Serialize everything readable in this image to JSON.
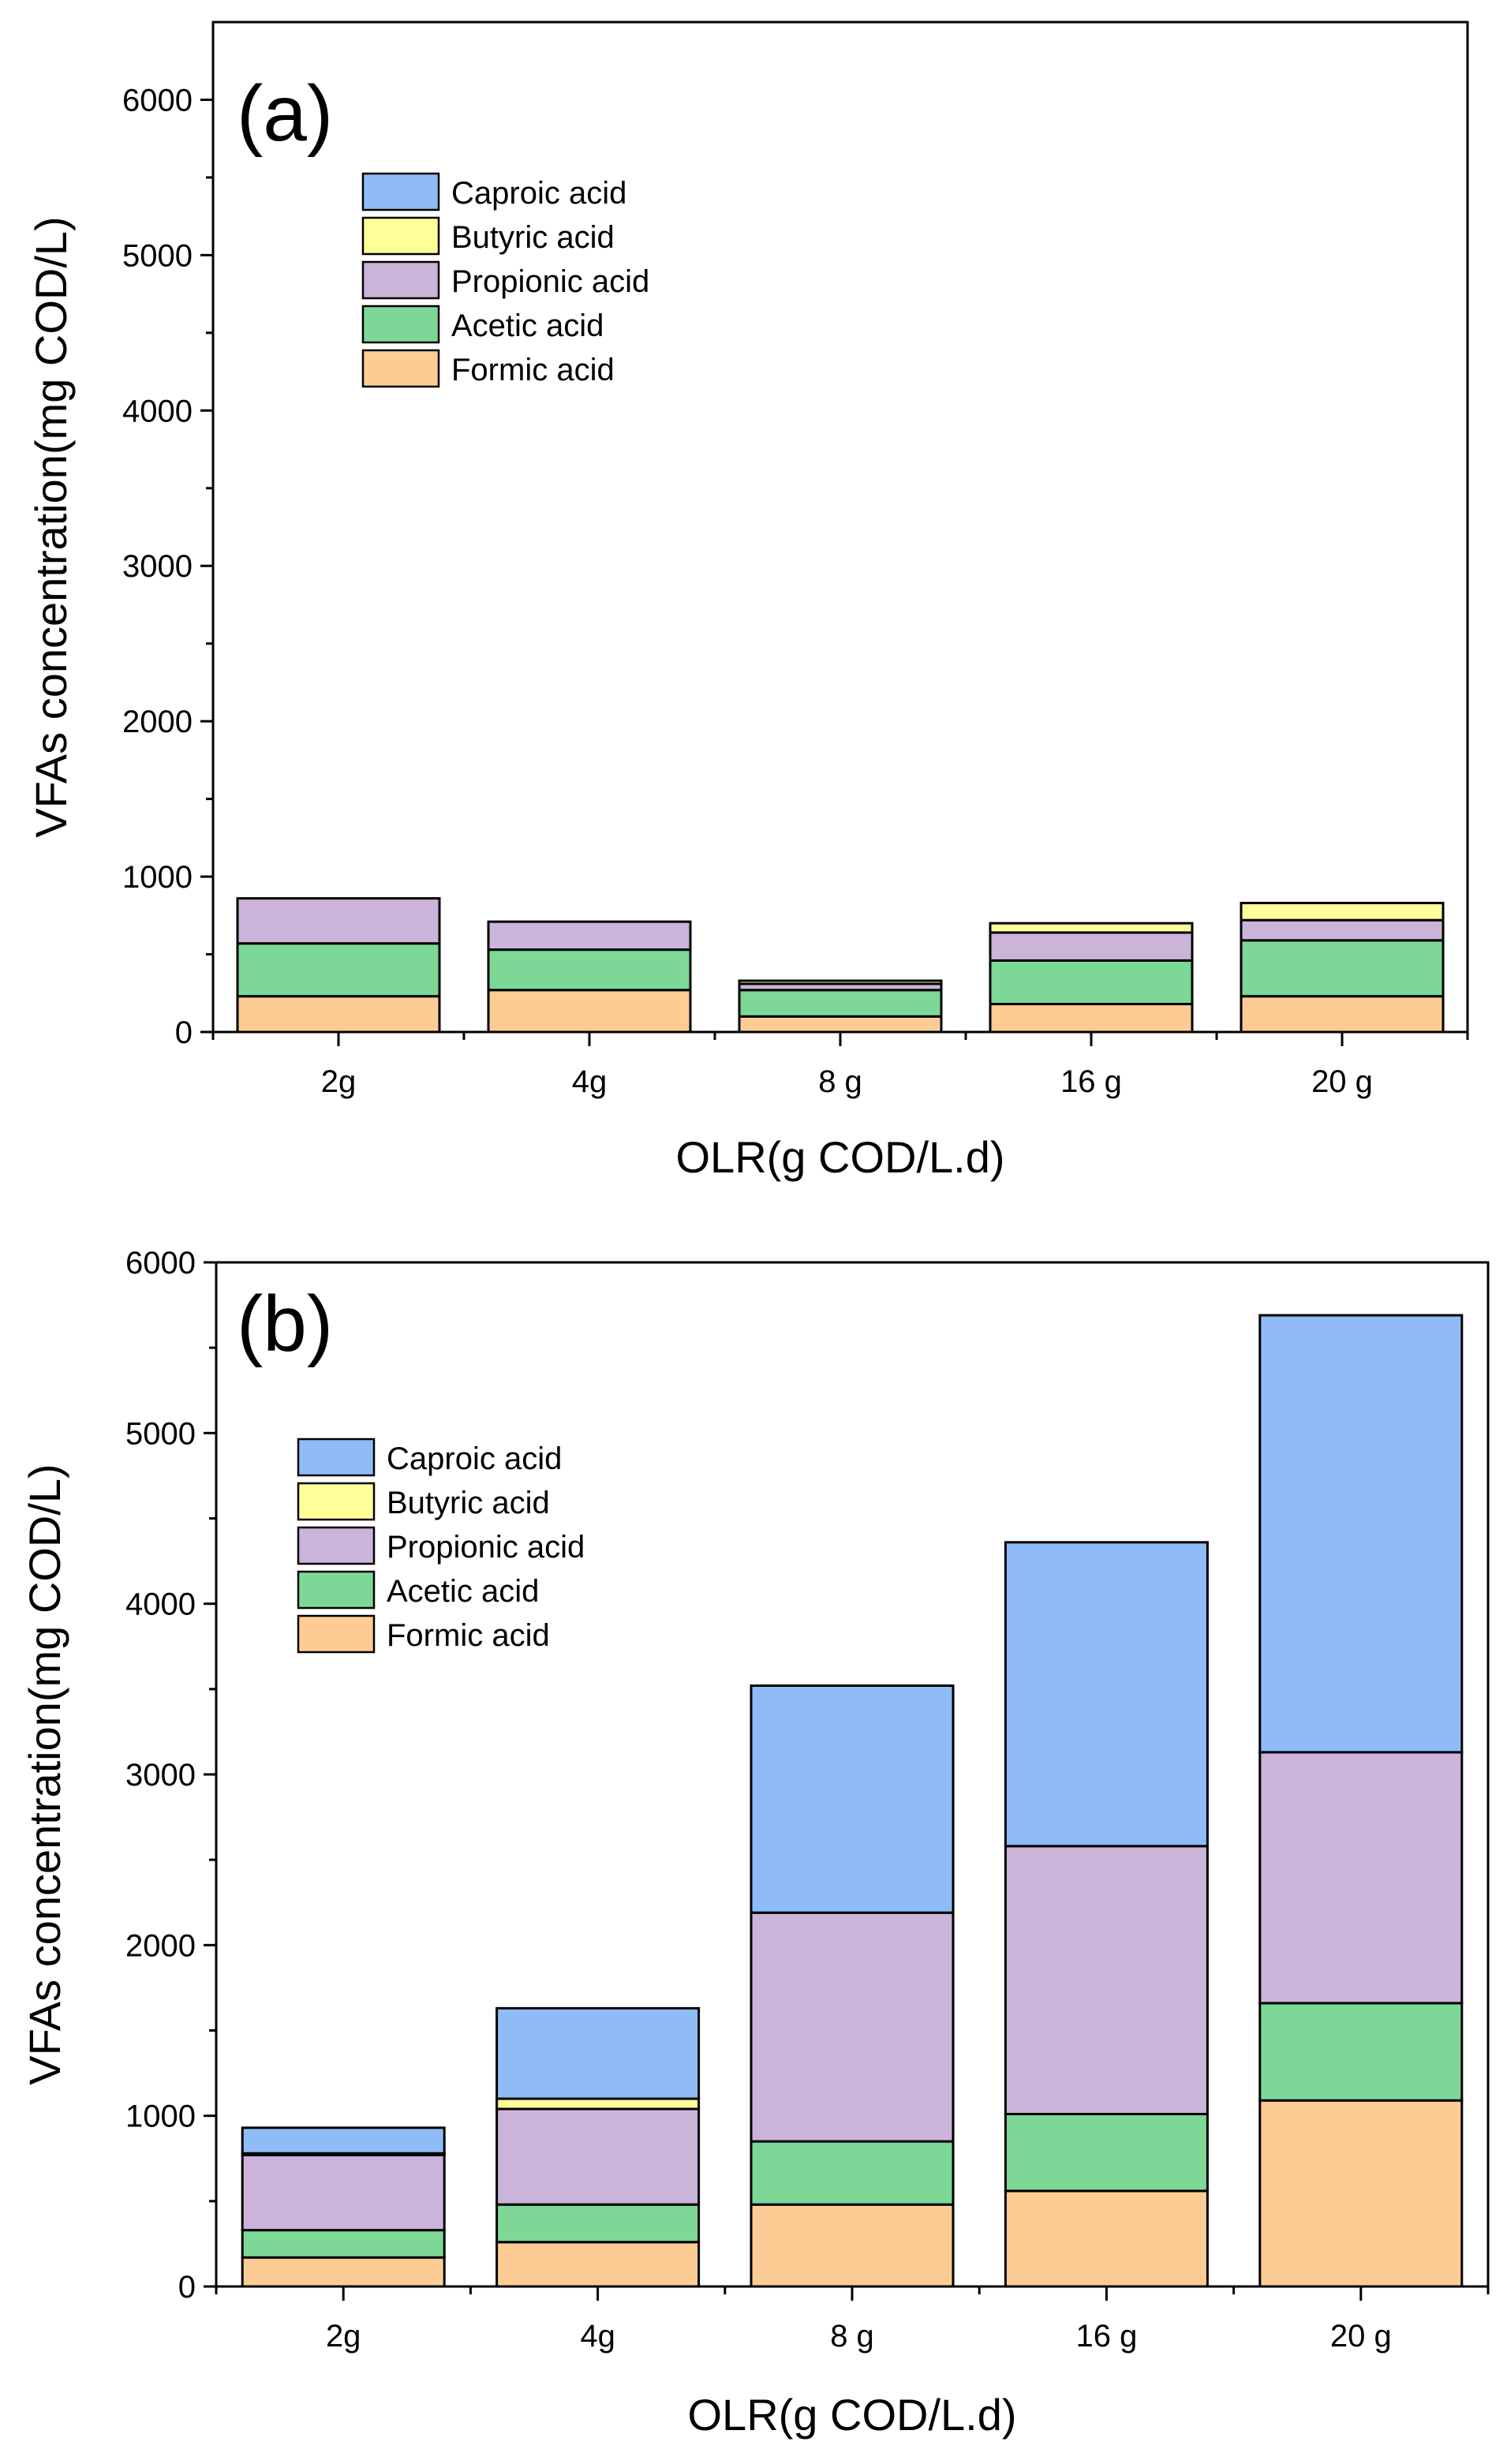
{
  "colors": {
    "Caproic acid": "#8fbcf7",
    "Butyric acid": "#ffff99",
    "Propionic acid": "#cbb3d9",
    "Acetic acid": "#7dd897",
    "Formic acid": "#fdcc94"
  },
  "chart_data": [
    {
      "type": "bar",
      "stacked": true,
      "panel_label": "(a)",
      "xlabel": "OLR(g COD/L.d)",
      "ylabel": "VFAs concentration(mg COD/L)",
      "ylim": [
        0,
        6500
      ],
      "yticks": [
        0,
        1000,
        2000,
        3000,
        4000,
        5000,
        6000
      ],
      "categories": [
        "2g",
        "4g",
        "8 g",
        "16 g",
        "20 g"
      ],
      "legend_order": [
        "Caproic acid",
        "Butyric acid",
        "Propionic acid",
        "Acetic acid",
        "Formic acid"
      ],
      "legend_position": "upper-left",
      "series": [
        {
          "name": "Formic acid",
          "values": [
            230,
            270,
            100,
            180,
            230
          ]
        },
        {
          "name": "Acetic acid",
          "values": [
            340,
            260,
            170,
            280,
            360
          ]
        },
        {
          "name": "Propionic acid",
          "values": [
            290,
            180,
            40,
            180,
            130
          ]
        },
        {
          "name": "Butyric acid",
          "values": [
            0,
            0,
            20,
            60,
            110
          ]
        },
        {
          "name": "Caproic acid",
          "values": [
            0,
            0,
            0,
            0,
            0
          ]
        }
      ]
    },
    {
      "type": "bar",
      "stacked": true,
      "panel_label": "(b)",
      "xlabel": "OLR(g COD/L.d)",
      "ylabel": "VFAs concentration(mg COD/L)",
      "ylim": [
        0,
        6000
      ],
      "yticks": [
        0,
        1000,
        2000,
        3000,
        4000,
        5000,
        6000
      ],
      "categories": [
        "2g",
        "4g",
        "8 g",
        "16 g",
        "20 g"
      ],
      "legend_order": [
        "Caproic acid",
        "Butyric acid",
        "Propionic acid",
        "Acetic acid",
        "Formic acid"
      ],
      "legend_position": "upper-left",
      "series": [
        {
          "name": "Formic acid",
          "values": [
            170,
            260,
            480,
            560,
            1090
          ]
        },
        {
          "name": "Acetic acid",
          "values": [
            160,
            220,
            370,
            450,
            570
          ]
        },
        {
          "name": "Propionic acid",
          "values": [
            440,
            560,
            1340,
            1570,
            1470
          ]
        },
        {
          "name": "Butyric acid",
          "values": [
            10,
            60,
            0,
            0,
            0
          ]
        },
        {
          "name": "Caproic acid",
          "values": [
            150,
            530,
            1330,
            1780,
            2560
          ]
        }
      ]
    }
  ]
}
